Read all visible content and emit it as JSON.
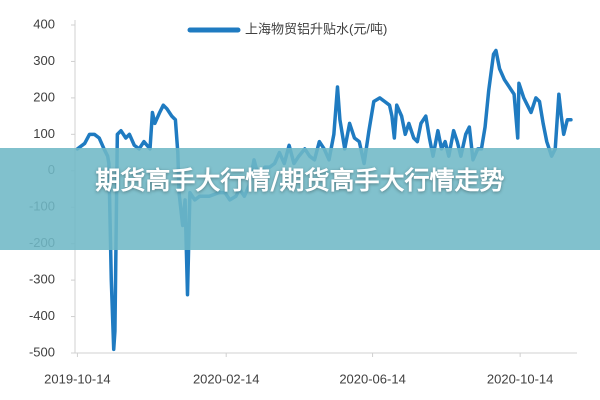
{
  "chart_data": {
    "type": "line",
    "legend_label": "上海物贸铝升贴水(元/吨)",
    "x": [
      "2019-10-14",
      "2019-10-20",
      "2019-10-24",
      "2019-10-28",
      "2019-11-01",
      "2019-11-05",
      "2019-11-08",
      "2019-11-09",
      "2019-11-11",
      "2019-11-13",
      "2019-11-14",
      "2019-11-16",
      "2019-11-19",
      "2019-11-23",
      "2019-11-26",
      "2019-11-30",
      "2019-12-04",
      "2019-12-08",
      "2019-12-13",
      "2019-12-15",
      "2019-12-17",
      "2019-12-21",
      "2019-12-24",
      "2019-12-27",
      "2019-12-31",
      "2020-01-03",
      "2020-01-05",
      "2020-01-06",
      "2020-01-09",
      "2020-01-11",
      "2020-01-13",
      "2020-01-15",
      "2020-01-19",
      "2020-01-23",
      "2020-01-31",
      "2020-02-08",
      "2020-02-13",
      "2020-02-17",
      "2020-02-22",
      "2020-02-25",
      "2020-02-29",
      "2020-03-04",
      "2020-03-08",
      "2020-03-12",
      "2020-03-17",
      "2020-03-21",
      "2020-03-25",
      "2020-03-29",
      "2020-04-02",
      "2020-04-06",
      "2020-04-10",
      "2020-04-14",
      "2020-04-19",
      "2020-04-23",
      "2020-04-27",
      "2020-05-01",
      "2020-05-05",
      "2020-05-09",
      "2020-05-13",
      "2020-05-16",
      "2020-05-18",
      "2020-05-22",
      "2020-05-26",
      "2020-05-30",
      "2020-06-03",
      "2020-06-07",
      "2020-06-11",
      "2020-06-15",
      "2020-06-20",
      "2020-06-24",
      "2020-06-28",
      "2020-06-30",
      "2020-07-02",
      "2020-07-04",
      "2020-07-08",
      "2020-07-11",
      "2020-07-14",
      "2020-07-18",
      "2020-07-21",
      "2020-07-24",
      "2020-07-28",
      "2020-07-31",
      "2020-08-03",
      "2020-08-07",
      "2020-08-10",
      "2020-08-13",
      "2020-08-16",
      "2020-08-20",
      "2020-08-23",
      "2020-08-26",
      "2020-08-30",
      "2020-09-02",
      "2020-09-05",
      "2020-09-09",
      "2020-09-12",
      "2020-09-15",
      "2020-09-18",
      "2020-09-22",
      "2020-09-24",
      "2020-09-27",
      "2020-10-01",
      "2020-10-05",
      "2020-10-09",
      "2020-10-12",
      "2020-10-13",
      "2020-10-17",
      "2020-10-20",
      "2020-10-23",
      "2020-10-27",
      "2020-10-30",
      "2020-11-02",
      "2020-11-05",
      "2020-11-09",
      "2020-11-12",
      "2020-11-15",
      "2020-11-17",
      "2020-11-19",
      "2020-11-22",
      "2020-11-25"
    ],
    "series": [
      {
        "name": "上海物贸铝升贴水(元/吨)",
        "color": "#1f7bc1",
        "values": [
          60,
          75,
          100,
          100,
          90,
          60,
          40,
          20,
          -300,
          -490,
          -440,
          100,
          110,
          90,
          100,
          70,
          60,
          80,
          60,
          160,
          130,
          160,
          180,
          170,
          150,
          140,
          50,
          -60,
          -150,
          -80,
          -340,
          -60,
          -80,
          -70,
          -70,
          -60,
          -60,
          -80,
          -70,
          -50,
          -70,
          -40,
          30,
          -20,
          10,
          10,
          20,
          50,
          20,
          70,
          20,
          40,
          60,
          40,
          30,
          80,
          60,
          30,
          100,
          230,
          140,
          60,
          130,
          90,
          80,
          20,
          110,
          190,
          200,
          190,
          180,
          150,
          90,
          180,
          150,
          100,
          130,
          90,
          80,
          130,
          150,
          90,
          40,
          110,
          60,
          80,
          40,
          110,
          80,
          40,
          100,
          120,
          30,
          60,
          60,
          120,
          220,
          320,
          330,
          280,
          250,
          230,
          210,
          90,
          240,
          200,
          180,
          160,
          200,
          190,
          130,
          80,
          40,
          60,
          210,
          150,
          100,
          140,
          140
        ]
      }
    ],
    "xlim": [
      "2019-10-12",
      "2020-11-30"
    ],
    "xticks": [
      "2019-10-14",
      "2020-02-14",
      "2020-06-14",
      "2020-10-14"
    ],
    "ylim": [
      -500,
      400
    ],
    "yticks": [
      -500,
      -400,
      -300,
      -200,
      -100,
      0,
      100,
      200,
      300,
      400
    ],
    "grid": false
  },
  "banner": {
    "text": "期货高手大行情/期货高手大行情走势"
  }
}
